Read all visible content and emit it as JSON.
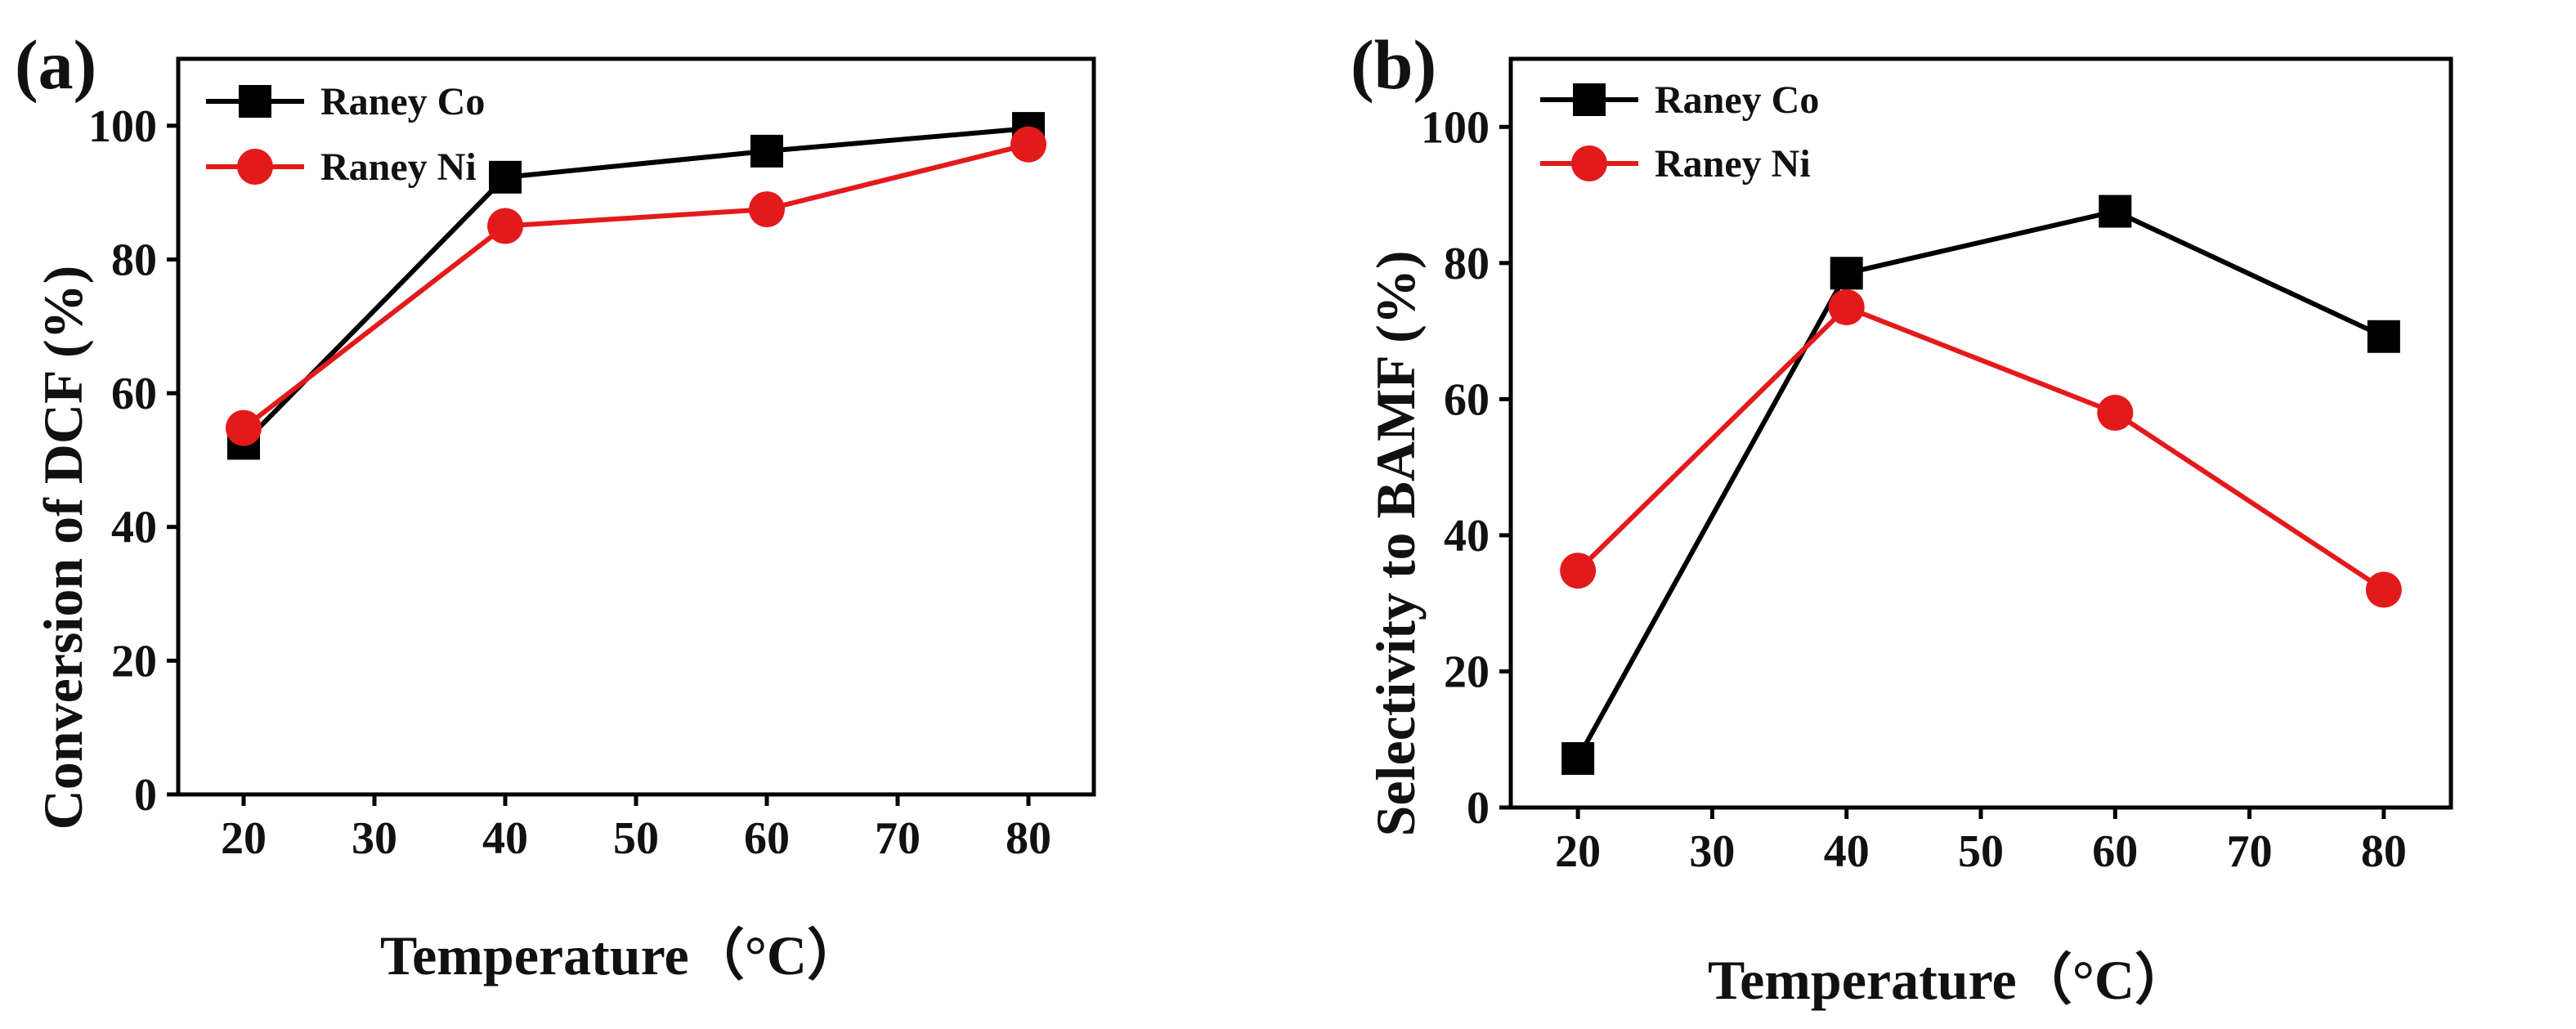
{
  "colors": {
    "co": "#000000",
    "ni": "#e31a1c",
    "axis": "#000000"
  },
  "chart_data": [
    {
      "panel_label": "(a)",
      "type": "line",
      "xlabel": "Temperature（°C）",
      "ylabel": "Conversion of DCF (%)",
      "xlim": [
        15,
        85
      ],
      "ylim": [
        0,
        110
      ],
      "xticks": [
        20,
        30,
        40,
        50,
        60,
        70,
        80
      ],
      "yticks": [
        0,
        20,
        40,
        60,
        80,
        100
      ],
      "x": [
        20,
        40,
        60,
        80
      ],
      "legend_position": "top-left",
      "series": [
        {
          "name": "Raney Co",
          "marker": "square",
          "color": "#000000",
          "values": [
            52.5,
            92.3,
            96.2,
            99.6
          ]
        },
        {
          "name": "Raney Ni",
          "marker": "circle",
          "color": "#e31a1c",
          "values": [
            54.8,
            85.0,
            87.5,
            97.2
          ]
        }
      ]
    },
    {
      "panel_label": "(b)",
      "type": "line",
      "xlabel": "Temperature（°C）",
      "ylabel": "Selectivity to BAMF (%)",
      "xlim": [
        15,
        85
      ],
      "ylim": [
        0,
        110
      ],
      "xticks": [
        20,
        30,
        40,
        50,
        60,
        70,
        80
      ],
      "yticks": [
        0,
        20,
        40,
        60,
        80,
        100
      ],
      "x": [
        20,
        40,
        60,
        80
      ],
      "legend_position": "top-left",
      "series": [
        {
          "name": "Raney Co",
          "marker": "square",
          "color": "#000000",
          "values": [
            7.2,
            78.5,
            87.6,
            69.2
          ]
        },
        {
          "name": "Raney Ni",
          "marker": "circle",
          "color": "#e31a1c",
          "values": [
            34.8,
            73.5,
            58.0,
            32.0
          ]
        }
      ]
    }
  ]
}
